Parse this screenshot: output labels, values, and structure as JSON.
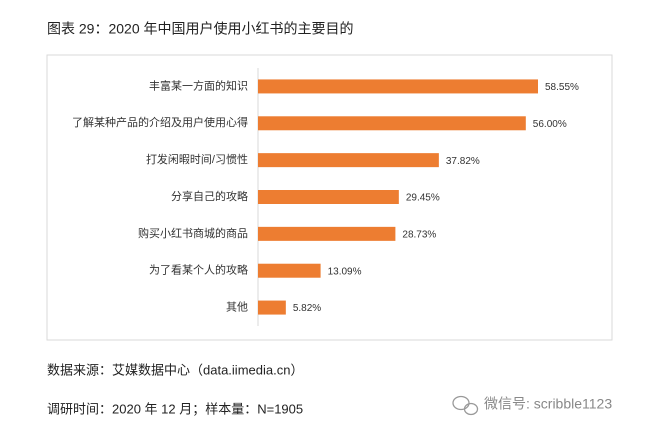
{
  "chart_data": {
    "type": "bar",
    "orientation": "horizontal",
    "title": "图表 29：2020 年中国用户使用小红书的主要目的",
    "categories": [
      "丰富某一方面的知识",
      "了解某种产品的介绍及用户使用心得",
      "打发闲暇时间/习惯性",
      "分享自己的攻略",
      "购买小红书商城的商品",
      "为了看某个人的攻略",
      "其他"
    ],
    "values": [
      58.55,
      56.0,
      37.82,
      29.45,
      28.73,
      13.09,
      5.82
    ],
    "value_labels": [
      "58.55%",
      "56.00%",
      "37.82%",
      "29.45%",
      "28.73%",
      "13.09%",
      "5.82%"
    ],
    "color": "#ed7d31"
  },
  "notes": {
    "source": "数据来源：艾媒数据中心（data.iimedia.cn）",
    "survey": "调研时间：2020 年 12 月；样本量：N=1905"
  },
  "watermark": "微信号: scribble1123"
}
